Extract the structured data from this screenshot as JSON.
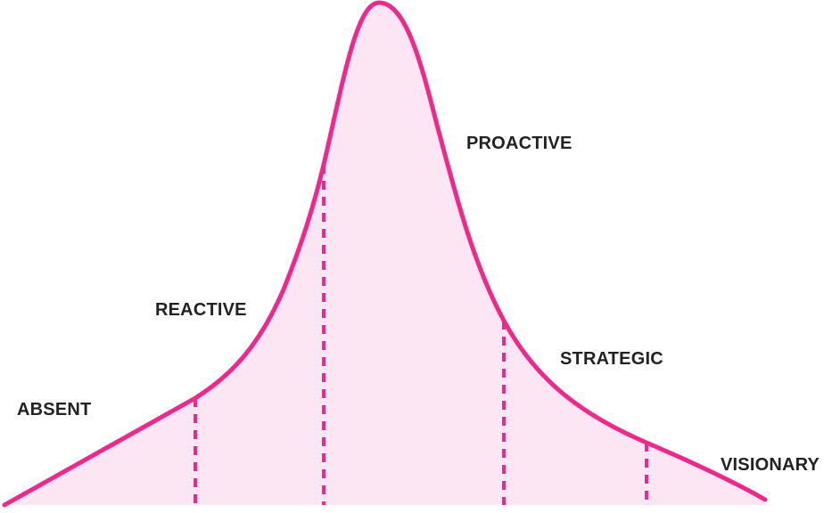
{
  "diagram": {
    "stages": [
      {
        "id": "absent",
        "label": "ABSENT"
      },
      {
        "id": "reactive",
        "label": "REACTIVE"
      },
      {
        "id": "proactive",
        "label": "PROACTIVE"
      },
      {
        "id": "strategic",
        "label": "STRATEGIC"
      },
      {
        "id": "visionary",
        "label": "VISIONARY"
      }
    ],
    "colors": {
      "curve": "#f0288c",
      "fill": "#fde6f3",
      "divider": "#f0288c",
      "label": "#222222"
    }
  }
}
